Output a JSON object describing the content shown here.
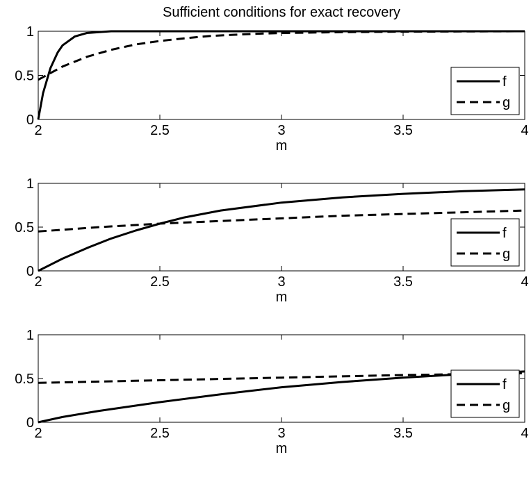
{
  "title": "Sufficient conditions for exact recovery",
  "chart_data": [
    {
      "type": "line",
      "title": "Sufficient conditions for exact recovery",
      "xlabel": "m",
      "ylabel": "",
      "xlim": [
        2,
        4
      ],
      "ylim": [
        0,
        1
      ],
      "xticks": [
        2,
        2.5,
        3,
        3.5,
        4
      ],
      "xtick_labels": [
        "2",
        "2.5",
        "3",
        "3.5",
        "4"
      ],
      "yticks": [
        0,
        0.5,
        1
      ],
      "ytick_labels": [
        "0",
        "0.5",
        "1"
      ],
      "grid": false,
      "legend_position": "right",
      "series": [
        {
          "name": "f",
          "style": "solid",
          "color": "#000000",
          "x": [
            2,
            2.02,
            2.05,
            2.08,
            2.1,
            2.15,
            2.2,
            2.25,
            2.3,
            2.4,
            2.5,
            3,
            3.5,
            4
          ],
          "y": [
            0,
            0.3,
            0.58,
            0.76,
            0.84,
            0.94,
            0.98,
            0.99,
            1,
            1,
            1,
            1,
            1,
            1
          ]
        },
        {
          "name": "g",
          "style": "dashed",
          "color": "#000000",
          "x": [
            2,
            2.1,
            2.2,
            2.3,
            2.4,
            2.5,
            2.6,
            2.7,
            2.8,
            2.9,
            3,
            3.25,
            3.5,
            4
          ],
          "y": [
            0.45,
            0.6,
            0.71,
            0.79,
            0.85,
            0.89,
            0.92,
            0.945,
            0.96,
            0.972,
            0.98,
            0.99,
            0.995,
            1
          ]
        }
      ]
    },
    {
      "type": "line",
      "title": "",
      "xlabel": "m",
      "ylabel": "",
      "xlim": [
        2,
        4
      ],
      "ylim": [
        0,
        1
      ],
      "xticks": [
        2,
        2.5,
        3,
        3.5,
        4
      ],
      "xtick_labels": [
        "2",
        "2.5",
        "3",
        "3.5",
        "4"
      ],
      "yticks": [
        0,
        0.5,
        1
      ],
      "ytick_labels": [
        "0",
        "0.5",
        "1"
      ],
      "grid": false,
      "legend_position": "right",
      "series": [
        {
          "name": "f",
          "style": "solid",
          "color": "#000000",
          "x": [
            2,
            2.1,
            2.2,
            2.3,
            2.4,
            2.5,
            2.6,
            2.75,
            3,
            3.25,
            3.5,
            3.75,
            4
          ],
          "y": [
            0,
            0.14,
            0.26,
            0.37,
            0.46,
            0.54,
            0.61,
            0.69,
            0.78,
            0.84,
            0.88,
            0.91,
            0.93
          ]
        },
        {
          "name": "g",
          "style": "dashed",
          "color": "#000000",
          "x": [
            2,
            2.25,
            2.5,
            2.75,
            3,
            3.25,
            3.5,
            3.75,
            4
          ],
          "y": [
            0.45,
            0.5,
            0.54,
            0.57,
            0.6,
            0.63,
            0.65,
            0.67,
            0.69
          ]
        }
      ]
    },
    {
      "type": "line",
      "title": "",
      "xlabel": "m",
      "ylabel": "",
      "xlim": [
        2,
        4
      ],
      "ylim": [
        0,
        1
      ],
      "xticks": [
        2,
        2.5,
        3,
        3.5,
        4
      ],
      "xtick_labels": [
        "2",
        "2.5",
        "3",
        "3.5",
        "4"
      ],
      "yticks": [
        0,
        0.5,
        1
      ],
      "ytick_labels": [
        "0",
        "0.5",
        "1"
      ],
      "grid": false,
      "legend_position": "right",
      "series": [
        {
          "name": "f",
          "style": "solid",
          "color": "#000000",
          "x": [
            2,
            2.1,
            2.25,
            2.5,
            2.75,
            3,
            3.25,
            3.5,
            3.75,
            4
          ],
          "y": [
            0,
            0.06,
            0.13,
            0.23,
            0.32,
            0.4,
            0.46,
            0.51,
            0.55,
            0.58
          ]
        },
        {
          "name": "g",
          "style": "dashed",
          "color": "#000000",
          "x": [
            2,
            2.5,
            3,
            3.5,
            4
          ],
          "y": [
            0.45,
            0.48,
            0.51,
            0.54,
            0.56
          ]
        }
      ]
    }
  ]
}
